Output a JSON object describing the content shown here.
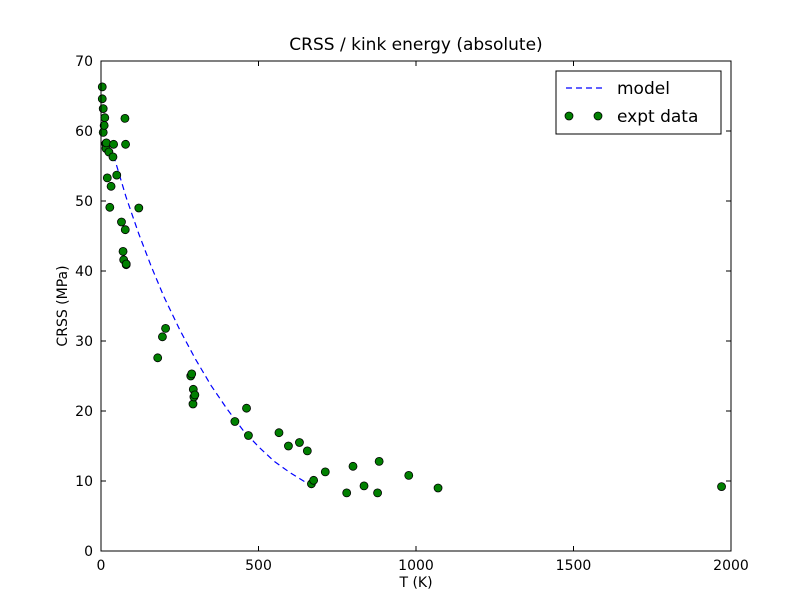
{
  "chart_data": {
    "type": "scatter",
    "title": "CRSS / kink energy (absolute)",
    "xlabel": "T (K)",
    "ylabel": "CRSS (MPa)",
    "xlim": [
      0,
      2000
    ],
    "ylim": [
      0,
      70
    ],
    "xticks": [
      "0",
      "500",
      "1000",
      "1500",
      "2000"
    ],
    "yticks": [
      "0",
      "10",
      "20",
      "30",
      "40",
      "50",
      "60",
      "70"
    ],
    "grid": false,
    "legend_position": "top-right",
    "series": [
      {
        "name": "model",
        "style": "dashed-line",
        "color": "#0000ff",
        "x": [
          40,
          80,
          120,
          160,
          200,
          250,
          300,
          350,
          400,
          450,
          500,
          550,
          600,
          650
        ],
        "y": [
          56.5,
          50.5,
          45.3,
          40.6,
          36.3,
          31.6,
          27.4,
          23.6,
          20.3,
          17.3,
          14.9,
          12.8,
          11.2,
          9.8
        ]
      },
      {
        "name": "expt data",
        "style": "markers",
        "color": "#008000",
        "x": [
          4,
          4,
          7,
          7,
          10,
          12,
          15,
          16,
          17,
          20,
          25,
          28,
          32,
          38,
          40,
          50,
          65,
          70,
          72,
          76,
          77,
          78,
          80,
          80,
          120,
          180,
          195,
          205,
          285,
          288,
          292,
          293,
          295,
          298,
          425,
          462,
          468,
          565,
          595,
          630,
          655,
          668,
          675,
          712,
          780,
          800,
          835,
          878,
          883,
          977,
          1070,
          1970
        ],
        "y": [
          66.3,
          64.6,
          63.2,
          59.8,
          60.8,
          61.9,
          58.2,
          57.5,
          58.3,
          53.3,
          57.0,
          49.1,
          52.1,
          56.3,
          58.1,
          53.7,
          47.0,
          42.8,
          41.6,
          61.8,
          45.9,
          58.1,
          40.9,
          41.0,
          49.0,
          27.6,
          30.6,
          31.8,
          25.0,
          25.3,
          21.0,
          23.1,
          22.0,
          22.3,
          18.5,
          20.4,
          16.5,
          16.9,
          15.0,
          15.5,
          14.3,
          9.6,
          10.1,
          11.3,
          8.3,
          12.1,
          9.3,
          8.3,
          12.8,
          10.8,
          9.0,
          9.2
        ]
      }
    ]
  }
}
